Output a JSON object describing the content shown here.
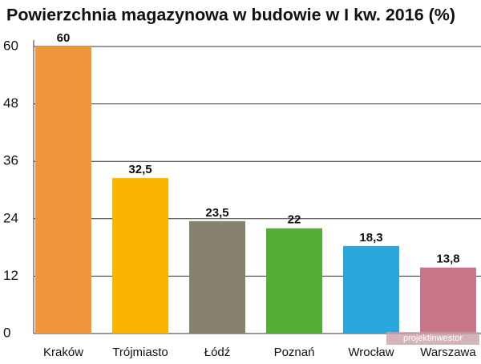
{
  "chart_data": {
    "type": "bar",
    "title": "Powierzchnia magazynowa w budowie w I kw. 2016 (%)",
    "categories": [
      "Kraków",
      "Trójmiasto",
      "Łódź",
      "Poznań",
      "Wrocław",
      "Warszawa"
    ],
    "values": [
      60,
      32.5,
      23.5,
      22,
      18.3,
      13.8
    ],
    "value_labels": [
      "60",
      "32,5",
      "23,5",
      "22",
      "18,3",
      "13,8"
    ],
    "colors": [
      "#f0963c",
      "#fbb400",
      "#86826f",
      "#53ae37",
      "#2aa8de",
      "#c9758a"
    ],
    "ylim": [
      0,
      60
    ],
    "yticks": [
      0,
      12,
      24,
      36,
      48,
      60
    ],
    "grid": true,
    "watermark": "projektinwestor"
  }
}
